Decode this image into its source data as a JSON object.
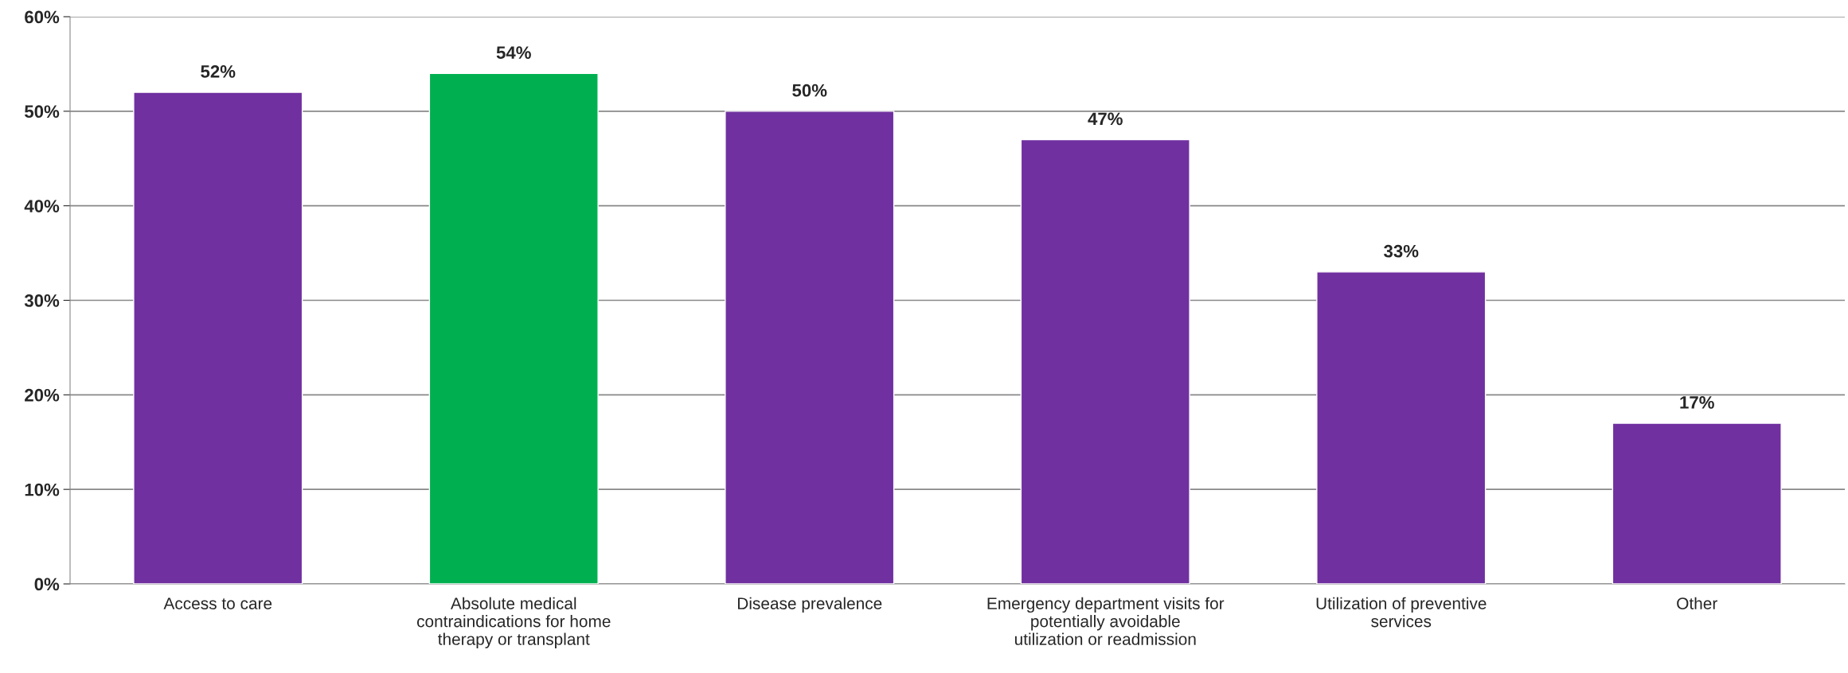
{
  "chart_data": {
    "type": "bar",
    "categories": [
      "Access to care",
      "Absolute medical contraindications for home therapy or transplant",
      "Disease prevalence",
      "Emergency department visits for potentially avoidable utilization or readmission",
      "Utilization of preventive services",
      "Other"
    ],
    "values": [
      52,
      54,
      50,
      47,
      33,
      17
    ],
    "colors": [
      "#7030a0",
      "#00b050",
      "#7030a0",
      "#7030a0",
      "#7030a0",
      "#7030a0"
    ],
    "value_labels": [
      "52%",
      "54%",
      "50%",
      "47%",
      "33%",
      "17%"
    ],
    "ylim": [
      0,
      60
    ],
    "yticks": [
      {
        "value": 0,
        "label": "0%"
      },
      {
        "value": 10,
        "label": "10%"
      },
      {
        "value": 20,
        "label": "20%"
      },
      {
        "value": 30,
        "label": "30%"
      },
      {
        "value": 40,
        "label": "40%"
      },
      {
        "value": 50,
        "label": "50%"
      },
      {
        "value": 60,
        "label": "60%"
      }
    ],
    "grid": "y",
    "legend": false
  }
}
